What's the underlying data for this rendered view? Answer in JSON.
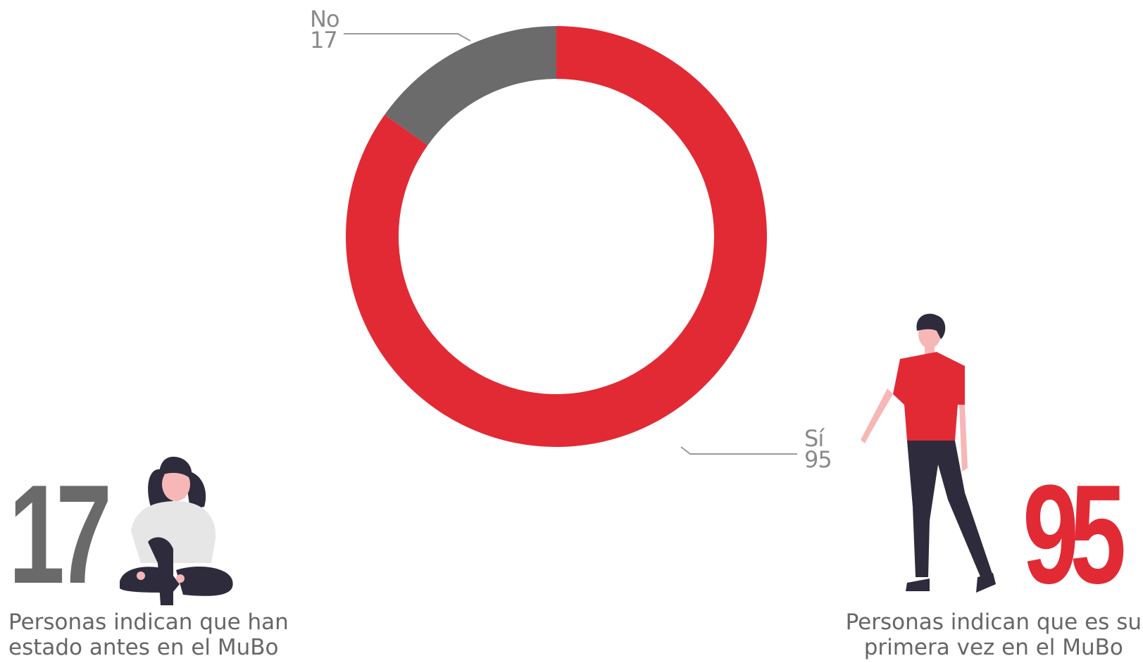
{
  "chart_data": {
    "type": "pie",
    "variant": "donut",
    "slices": [
      {
        "label": "Sí",
        "value": 95,
        "color": "#e22a35"
      },
      {
        "label": "No",
        "value": 17,
        "color": "#6b6b6b"
      }
    ]
  },
  "labels": {
    "no": {
      "name": "No",
      "value": "17"
    },
    "si": {
      "name": "Sí",
      "value": "95"
    }
  },
  "stats": {
    "no": {
      "number": "17",
      "line1": "Personas indican que han",
      "line2": "estado antes en el MuBo",
      "color": "#6a6a6a"
    },
    "si": {
      "number": "95",
      "line1": "Personas indican que es su",
      "line2": "primera vez en el MuBo",
      "color": "#e22a35"
    }
  }
}
